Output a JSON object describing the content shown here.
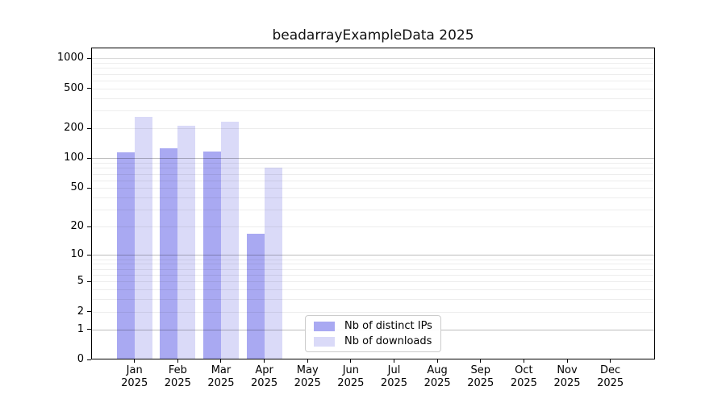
{
  "chart_data": {
    "type": "bar",
    "title": "beadarrayExampleData 2025",
    "categories": [
      "Jan",
      "Feb",
      "Mar",
      "Apr",
      "May",
      "Jun",
      "Jul",
      "Aug",
      "Sep",
      "Oct",
      "Nov",
      "Dec"
    ],
    "category_year": "2025",
    "series": [
      {
        "name": "Nb of distinct IPs",
        "color": "#a9a9f2",
        "values": [
          114,
          126,
          117,
          17,
          0,
          0,
          0,
          0,
          0,
          0,
          0,
          0
        ]
      },
      {
        "name": "Nb of downloads",
        "color": "#dadaf8",
        "values": [
          261,
          213,
          234,
          81,
          0,
          0,
          0,
          0,
          0,
          0,
          0,
          0
        ]
      }
    ],
    "yticks": [
      0,
      1,
      2,
      5,
      10,
      20,
      50,
      100,
      200,
      500,
      1000
    ],
    "yscale": "log1p",
    "ylim": [
      0,
      1280
    ],
    "grid": "horizontal, log minor lines, majors at 1/10/100/1000, drawn over bars",
    "legend": {
      "position": "lower-center-inside",
      "labels": [
        "Nb of distinct IPs",
        "Nb of downloads"
      ]
    },
    "colors": {
      "axis": "#000000",
      "grid_major": "#b9b9b9",
      "grid_minor": "#ececec",
      "background": "#ffffff"
    }
  }
}
